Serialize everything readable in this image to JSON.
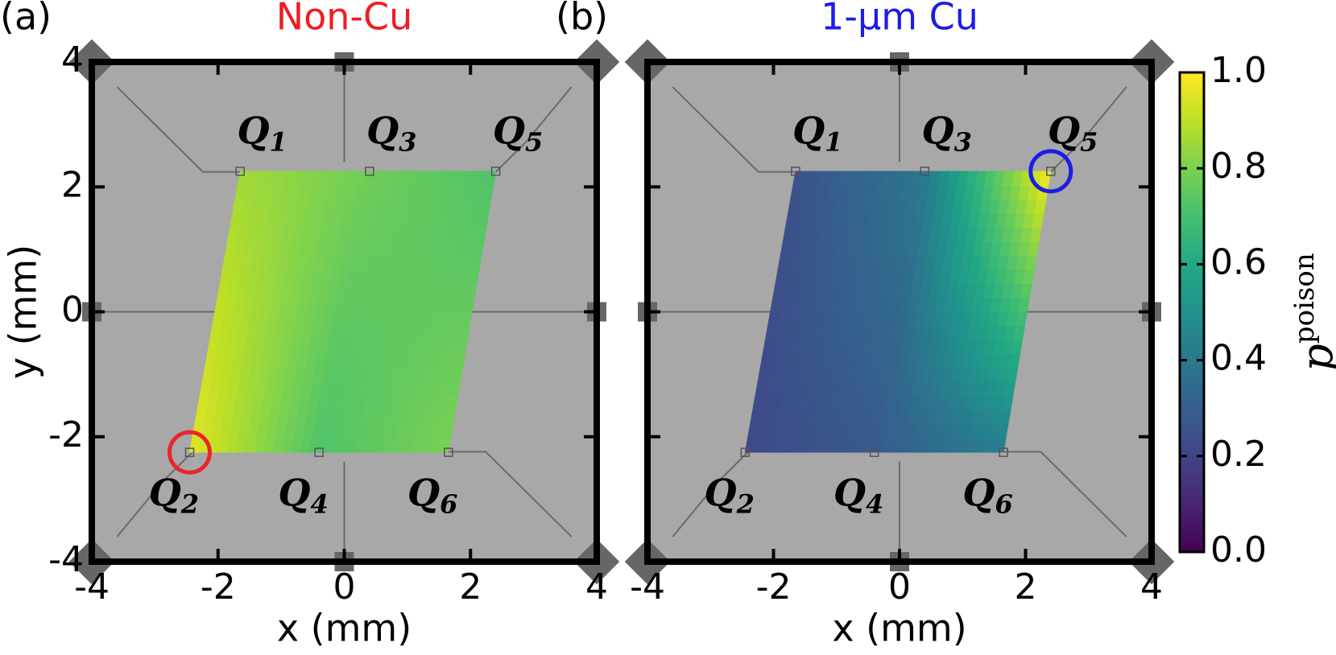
{
  "chart_data": [
    {
      "type": "heatmap",
      "panel_label": "(a)",
      "title": "Non-Cu",
      "title_color": "#ee1d23",
      "xlabel": "x (mm)",
      "ylabel": "y (mm)",
      "xlim": [
        -4,
        4
      ],
      "ylim": [
        -4,
        4
      ],
      "xticks": [
        -4,
        -2,
        0,
        2,
        4
      ],
      "yticks": [
        -4,
        -2,
        0,
        2,
        4
      ],
      "show_ytick_labels": true,
      "colormap": "viridis",
      "qubits": [
        {
          "symbol": "Q",
          "index": "1",
          "x": -1.65,
          "y": 2.25,
          "value": 0.86
        },
        {
          "symbol": "Q",
          "index": "2",
          "x": -2.45,
          "y": -2.25,
          "value": 0.96
        },
        {
          "symbol": "Q",
          "index": "3",
          "x": 0.4,
          "y": 2.25,
          "value": 0.78
        },
        {
          "symbol": "Q",
          "index": "4",
          "x": -0.4,
          "y": -2.25,
          "value": 0.72
        },
        {
          "symbol": "Q",
          "index": "5",
          "x": 2.4,
          "y": 2.25,
          "value": 0.72
        },
        {
          "symbol": "Q",
          "index": "6",
          "x": 1.65,
          "y": -2.25,
          "value": 0.8
        }
      ],
      "highlight_qubit": 1,
      "highlight_color": "#e8262b"
    },
    {
      "type": "heatmap",
      "panel_label": "(b)",
      "title": "1-μm Cu",
      "title_color": "#1c1ce8",
      "xlabel": "x (mm)",
      "xlim": [
        -4,
        4
      ],
      "ylim": [
        -4,
        4
      ],
      "xticks": [
        -4,
        -2,
        0,
        2,
        4
      ],
      "yticks": [
        -4,
        -2,
        0,
        2,
        4
      ],
      "show_ytick_labels": false,
      "colormap": "viridis",
      "qubits": [
        {
          "symbol": "Q",
          "index": "1",
          "x": -1.65,
          "y": 2.25,
          "value": 0.25
        },
        {
          "symbol": "Q",
          "index": "2",
          "x": -2.45,
          "y": -2.25,
          "value": 0.22
        },
        {
          "symbol": "Q",
          "index": "3",
          "x": 0.4,
          "y": 2.25,
          "value": 0.4
        },
        {
          "symbol": "Q",
          "index": "4",
          "x": -0.4,
          "y": -2.25,
          "value": 0.28
        },
        {
          "symbol": "Q",
          "index": "5",
          "x": 2.4,
          "y": 2.25,
          "value": 1.0
        },
        {
          "symbol": "Q",
          "index": "6",
          "x": 1.65,
          "y": -2.25,
          "value": 0.42
        }
      ],
      "highlight_qubit": 4,
      "highlight_color": "#1c1ce8"
    },
    {
      "type": "colorbar",
      "label": "p",
      "label_superscript": "poison",
      "colormap": "viridis",
      "ylim": [
        0,
        1
      ],
      "yticks": [
        {
          "value": 0,
          "label": "0.0"
        },
        {
          "value": 0.2,
          "label": "0.2"
        },
        {
          "value": 0.4,
          "label": "0.4"
        },
        {
          "value": 0.6,
          "label": "0.6"
        },
        {
          "value": 0.8,
          "label": "0.8"
        },
        {
          "value": 1,
          "label": "1.0"
        }
      ]
    }
  ]
}
